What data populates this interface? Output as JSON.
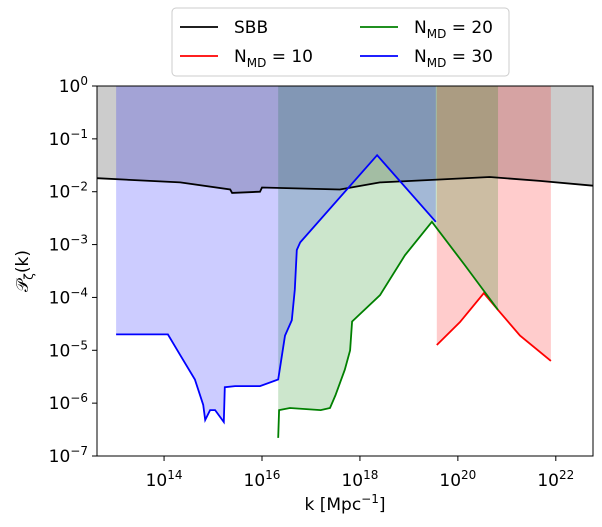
{
  "chart_data": {
    "type": "line",
    "xlabel": "k [Mpc^{−1}]",
    "ylabel": "𝒫_{ζ}(k)",
    "xscale": "log",
    "yscale": "log",
    "xlim": [
      4270000000000.0,
      5.75e+22
    ],
    "ylim": [
      1e-07,
      1
    ],
    "xticks": [
      {
        "value": 100000000000000.0,
        "label": "10^{14}"
      },
      {
        "value": 1e+16,
        "label": "10^{16}"
      },
      {
        "value": 1e+18,
        "label": "10^{18}"
      },
      {
        "value": 1e+20,
        "label": "10^{20}"
      },
      {
        "value": 1e+22,
        "label": "10^{22}"
      }
    ],
    "yticks": [
      {
        "value": 1,
        "label": "10^{0}"
      },
      {
        "value": 0.1,
        "label": "10^{−1}"
      },
      {
        "value": 0.01,
        "label": "10^{−2}"
      },
      {
        "value": 0.001,
        "label": "10^{−3}"
      },
      {
        "value": 0.0001,
        "label": "10^{−4}"
      },
      {
        "value": 1e-05,
        "label": "10^{−5}"
      },
      {
        "value": 1e-06,
        "label": "10^{−6}"
      },
      {
        "value": 1e-07,
        "label": "10^{−7}"
      }
    ],
    "legend_loc": "top",
    "legend_ncol": 2,
    "shade_to_top": true,
    "series": [
      {
        "name": "SBB",
        "color": "#000000",
        "shade": "#808080",
        "x": [
          4270000000000.0,
          214000000000000.0,
          2240000000000000.0,
          2450000000000000.0,
          9120000000000000.0,
          1e+16,
          3.89e+17,
          2.57e+18,
          4.27e+19,
          4.47e+20,
          4.68e+21,
          5.75e+22
        ],
        "values": [
          0.018,
          0.015,
          0.011,
          0.0095,
          0.01,
          0.012,
          0.011,
          0.015,
          0.017,
          0.019,
          0.016,
          0.013
        ]
      },
      {
        "name": "N_{MD} = 10",
        "color": "#ff0000",
        "shade": "#ff0000",
        "x": [
          3.72e+19,
          1.1e+20,
          3.39e+20,
          6.61e+20,
          1.86e+21,
          7.94e+21
        ],
        "values": [
          1.26e-05,
          3.4e-05,
          0.00012,
          5.8e-05,
          1.9e-05,
          6.3e-06
        ]
      },
      {
        "name": "N_{MD} = 20",
        "color": "#008000",
        "shade": "#008000",
        "x": [
          2.14e+16,
          2.24e+16,
          3.72e+16,
          1.58e+17,
          2.45e+17,
          3.16e+17,
          4.9e+17,
          6.31e+17,
          6.92e+17,
          2.57e+18,
          8.32e+18,
          2.95e+19,
          1.38e+20,
          6.61e+20
        ],
        "values": [
          2.2e-07,
          7.4e-07,
          8.1e-07,
          7.4e-07,
          8.1e-07,
          1.4e-06,
          4.3e-06,
          1e-05,
          3.5e-05,
          0.00011,
          0.00063,
          0.0027,
          0.00041,
          5.8e-05
        ]
      },
      {
        "name": "N_{MD} = 30",
        "color": "#0000ff",
        "shade": "#0000ff",
        "x": [
          10500000000000.0,
          120000000000000.0,
          214000000000000.0,
          427000000000000.0,
          631000000000000.0,
          692000000000000.0,
          871000000000000.0,
          1100000000000000.0,
          1660000000000000.0,
          1740000000000000.0,
          2820000000000000.0,
          9120000000000000.0,
          2.14e+16,
          2.95e+16,
          4.07e+16,
          4.68e+16,
          5.13e+16,
          6.03e+16,
          2.24e+18,
          3.55e+19
        ],
        "values": [
          2e-05,
          2e-05,
          8.1e-06,
          2.8e-06,
          9.3e-07,
          4.8e-07,
          7.4e-07,
          7.4e-07,
          4.4e-07,
          2e-06,
          2.1e-06,
          2.1e-06,
          2.8e-06,
          1.9e-05,
          3.7e-05,
          0.00014,
          0.00079,
          0.0011,
          0.049,
          0.0027
        ]
      }
    ]
  }
}
